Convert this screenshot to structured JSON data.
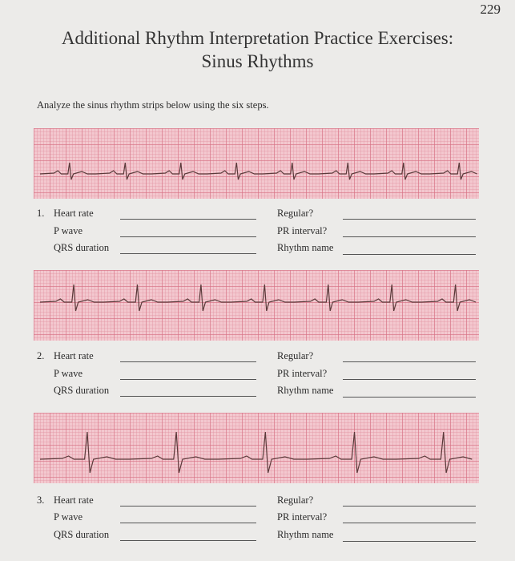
{
  "page_number": "229",
  "title_line1": "Additional Rhythm Interpretation Practice Exercises:",
  "title_line2": "Sinus Rhythms",
  "instructions": "Analyze the sinus rhythm strips below using the six steps.",
  "exercises": [
    {
      "number": "1.",
      "fields_left": [
        "Heart rate",
        "P wave",
        "QRS duration"
      ],
      "fields_right": [
        "Regular?",
        "PR interval?",
        "Rhythm name"
      ]
    },
    {
      "number": "2.",
      "fields_left": [
        "Heart rate",
        "P wave",
        "QRS duration"
      ],
      "fields_right": [
        "Regular?",
        "PR interval?",
        "Rhythm name"
      ]
    },
    {
      "number": "3.",
      "fields_left": [
        "Heart rate",
        "P wave",
        "QRS duration"
      ],
      "fields_right": [
        "Regular?",
        "PR interval?",
        "Rhythm name"
      ]
    }
  ],
  "colors": {
    "grid_paper": "#f3c8cf",
    "trace": "#5a3a3a"
  }
}
